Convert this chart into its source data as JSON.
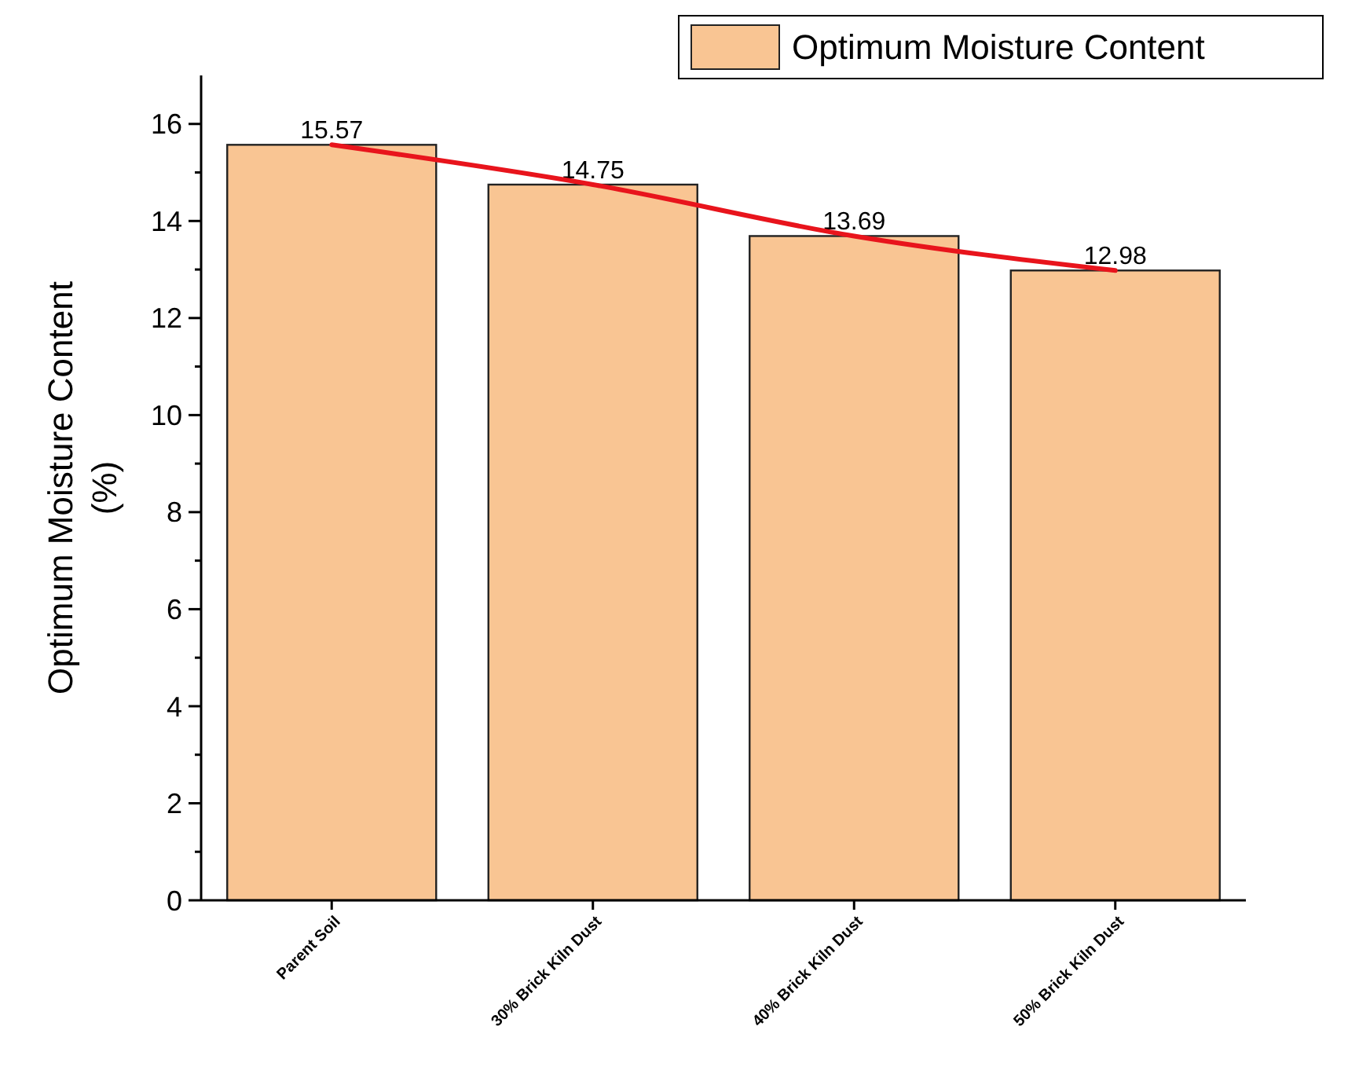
{
  "chart_data": {
    "type": "bar",
    "ylabel": "Optimum Moisture Content\n(%)",
    "categories": [
      "Parent Soil",
      "30% Brick Kiln Dust",
      "40% Brick Kiln Dust",
      "50% Brick Kiln Dust"
    ],
    "series": [
      {
        "name": "Optimum Moisture Content",
        "color": "#f9c593",
        "values": [
          15.57,
          14.75,
          13.69,
          12.98
        ],
        "value_labels": [
          "15.57",
          "14.75",
          "13.69",
          "12.98"
        ]
      },
      {
        "type": "line",
        "color": "#e8141c",
        "values": [
          15.57,
          14.75,
          13.69,
          12.98
        ]
      }
    ],
    "ylim": [
      0,
      17
    ],
    "yticks": [
      0,
      {
        "value": 1,
        "label": null
      },
      2,
      {
        "value": 3,
        "label": null
      },
      4,
      {
        "value": 5,
        "label": null
      },
      6,
      {
        "value": 7,
        "label": null
      },
      8,
      {
        "value": 9,
        "label": null
      },
      10,
      {
        "value": 11,
        "label": null
      },
      12,
      {
        "value": 13,
        "label": null
      },
      14,
      {
        "value": 15,
        "label": null
      },
      16
    ],
    "grid": false,
    "legend": "top right"
  }
}
